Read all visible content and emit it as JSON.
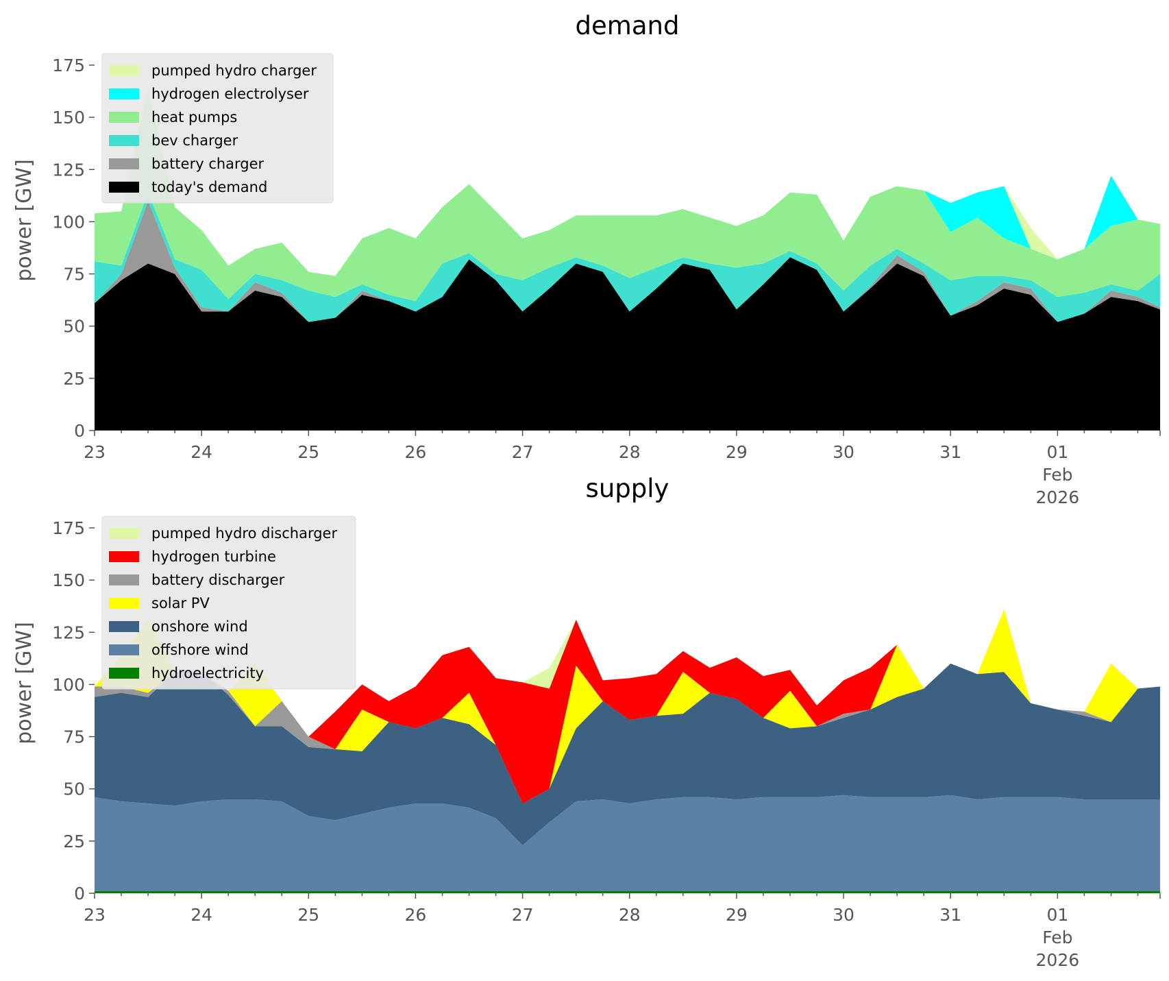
{
  "chart_data": [
    {
      "type": "area",
      "stacked": true,
      "title": "demand",
      "ylabel": "power [GW]",
      "xlabel": "",
      "ylim": [
        0,
        175
      ],
      "yticks": [
        0,
        25,
        50,
        75,
        100,
        125,
        150,
        175
      ],
      "xlim": [
        "2026-01-23",
        "2026-02-01T23:00"
      ],
      "xticks": [
        {
          "x": "2026-01-23",
          "label": "23"
        },
        {
          "x": "2026-01-24",
          "label": "24"
        },
        {
          "x": "2026-01-25",
          "label": "25"
        },
        {
          "x": "2026-01-26",
          "label": "26"
        },
        {
          "x": "2026-01-27",
          "label": "27"
        },
        {
          "x": "2026-01-28",
          "label": "28"
        },
        {
          "x": "2026-01-29",
          "label": "29"
        },
        {
          "x": "2026-01-30",
          "label": "30"
        },
        {
          "x": "2026-01-31",
          "label": "31"
        },
        {
          "x": "2026-02-01",
          "label": "01",
          "sublabel1": "Feb",
          "sublabel2": "2026"
        }
      ],
      "legend_position": "top-left",
      "grid": false,
      "x": [
        "2026-01-23T00:00",
        "2026-01-23T06:00",
        "2026-01-23T12:00",
        "2026-01-23T18:00",
        "2026-01-24T00:00",
        "2026-01-24T06:00",
        "2026-01-24T12:00",
        "2026-01-24T18:00",
        "2026-01-25T00:00",
        "2026-01-25T06:00",
        "2026-01-25T12:00",
        "2026-01-25T18:00",
        "2026-01-26T00:00",
        "2026-01-26T06:00",
        "2026-01-26T12:00",
        "2026-01-26T18:00",
        "2026-01-27T00:00",
        "2026-01-27T06:00",
        "2026-01-27T12:00",
        "2026-01-27T18:00",
        "2026-01-28T00:00",
        "2026-01-28T06:00",
        "2026-01-28T12:00",
        "2026-01-28T18:00",
        "2026-01-29T00:00",
        "2026-01-29T06:00",
        "2026-01-29T12:00",
        "2026-01-29T18:00",
        "2026-01-30T00:00",
        "2026-01-30T06:00",
        "2026-01-30T12:00",
        "2026-01-30T18:00",
        "2026-01-31T00:00",
        "2026-01-31T06:00",
        "2026-01-31T12:00",
        "2026-01-31T18:00",
        "2026-02-01T00:00",
        "2026-02-01T06:00",
        "2026-02-01T12:00",
        "2026-02-01T18:00",
        "2026-02-01T23:00"
      ],
      "series": [
        {
          "name": "today's demand",
          "color": "#000000",
          "values": [
            61,
            72,
            80,
            75,
            57,
            57,
            67,
            64,
            52,
            54,
            65,
            62,
            57,
            64,
            82,
            72,
            57,
            68,
            80,
            76,
            57,
            68,
            80,
            77,
            58,
            70,
            83,
            77,
            57,
            68,
            80,
            74,
            55,
            60,
            68,
            65,
            52,
            56,
            64,
            62,
            58
          ]
        },
        {
          "name": "battery charger",
          "color": "#999999",
          "values": [
            0,
            3,
            30,
            3,
            2,
            0,
            4,
            2,
            0,
            0,
            2,
            0,
            0,
            0,
            0,
            0,
            0,
            0,
            0,
            0,
            0,
            0,
            0,
            0,
            0,
            0,
            0,
            0,
            0,
            1,
            4,
            2,
            0,
            2,
            3,
            3,
            0,
            0,
            3,
            2,
            1
          ]
        },
        {
          "name": "bev charger",
          "color": "#40e0d0",
          "values": [
            20,
            4,
            4,
            4,
            18,
            6,
            4,
            6,
            15,
            10,
            3,
            3,
            5,
            16,
            3,
            3,
            15,
            10,
            3,
            3,
            16,
            10,
            3,
            3,
            20,
            10,
            3,
            3,
            10,
            10,
            3,
            4,
            17,
            12,
            3,
            4,
            12,
            10,
            3,
            3,
            16
          ]
        },
        {
          "name": "heat pumps",
          "color": "#90ee90",
          "values": [
            23,
            26,
            50,
            25,
            19,
            16,
            12,
            18,
            9,
            10,
            22,
            32,
            30,
            27,
            33,
            30,
            20,
            18,
            20,
            24,
            30,
            25,
            23,
            22,
            20,
            23,
            28,
            33,
            24,
            33,
            30,
            35,
            23,
            28,
            18,
            15,
            18,
            21,
            28,
            34,
            24
          ]
        },
        {
          "name": "hydrogen electrolyser",
          "color": "#00ffff",
          "values": [
            0,
            0,
            0,
            0,
            0,
            0,
            0,
            0,
            0,
            0,
            0,
            0,
            0,
            0,
            0,
            0,
            0,
            0,
            0,
            0,
            0,
            0,
            0,
            0,
            0,
            0,
            0,
            0,
            0,
            0,
            0,
            0,
            14,
            12,
            25,
            0,
            0,
            0,
            24,
            0,
            0
          ]
        },
        {
          "name": "pumped hydro charger",
          "color": "#ddf9a5",
          "values": [
            0,
            0,
            0,
            0,
            0,
            0,
            0,
            0,
            0,
            0,
            0,
            0,
            0,
            0,
            0,
            0,
            0,
            0,
            0,
            0,
            0,
            0,
            0,
            0,
            0,
            0,
            0,
            0,
            0,
            0,
            0,
            0,
            0,
            0,
            0,
            10,
            0,
            0,
            0,
            0,
            0
          ]
        }
      ],
      "legend": [
        "pumped hydro charger",
        "hydrogen electrolyser",
        "heat pumps",
        "bev charger",
        "battery charger",
        "today's demand"
      ]
    },
    {
      "type": "area",
      "stacked": true,
      "title": "supply",
      "ylabel": "power [GW]",
      "xlabel": "",
      "ylim": [
        0,
        175
      ],
      "yticks": [
        0,
        25,
        50,
        75,
        100,
        125,
        150,
        175
      ],
      "xlim": [
        "2026-01-23",
        "2026-02-01T23:00"
      ],
      "xticks": [
        {
          "x": "2026-01-23",
          "label": "23"
        },
        {
          "x": "2026-01-24",
          "label": "24"
        },
        {
          "x": "2026-01-25",
          "label": "25"
        },
        {
          "x": "2026-01-26",
          "label": "26"
        },
        {
          "x": "2026-01-27",
          "label": "27"
        },
        {
          "x": "2026-01-28",
          "label": "28"
        },
        {
          "x": "2026-01-29",
          "label": "29"
        },
        {
          "x": "2026-01-30",
          "label": "30"
        },
        {
          "x": "2026-01-31",
          "label": "31"
        },
        {
          "x": "2026-02-01",
          "label": "01",
          "sublabel1": "Feb",
          "sublabel2": "2026"
        }
      ],
      "legend_position": "top-left",
      "grid": false,
      "x": [
        "2026-01-23T00:00",
        "2026-01-23T06:00",
        "2026-01-23T12:00",
        "2026-01-23T18:00",
        "2026-01-24T00:00",
        "2026-01-24T06:00",
        "2026-01-24T12:00",
        "2026-01-24T18:00",
        "2026-01-25T00:00",
        "2026-01-25T06:00",
        "2026-01-25T12:00",
        "2026-01-25T18:00",
        "2026-01-26T00:00",
        "2026-01-26T06:00",
        "2026-01-26T12:00",
        "2026-01-26T18:00",
        "2026-01-27T00:00",
        "2026-01-27T06:00",
        "2026-01-27T12:00",
        "2026-01-27T18:00",
        "2026-01-28T00:00",
        "2026-01-28T06:00",
        "2026-01-28T12:00",
        "2026-01-28T18:00",
        "2026-01-29T00:00",
        "2026-01-29T06:00",
        "2026-01-29T12:00",
        "2026-01-29T18:00",
        "2026-01-30T00:00",
        "2026-01-30T06:00",
        "2026-01-30T12:00",
        "2026-01-30T18:00",
        "2026-01-31T00:00",
        "2026-01-31T06:00",
        "2026-01-31T12:00",
        "2026-01-31T18:00",
        "2026-02-01T00:00",
        "2026-02-01T06:00",
        "2026-02-01T12:00",
        "2026-02-01T18:00",
        "2026-02-01T23:00"
      ],
      "series": [
        {
          "name": "hydroelectricity",
          "color": "#008000",
          "values": [
            1,
            1,
            1,
            1,
            1,
            1,
            1,
            1,
            1,
            1,
            1,
            1,
            1,
            1,
            1,
            1,
            1,
            1,
            1,
            1,
            1,
            1,
            1,
            1,
            1,
            1,
            1,
            1,
            1,
            1,
            1,
            1,
            1,
            1,
            1,
            1,
            1,
            1,
            1,
            1,
            1
          ]
        },
        {
          "name": "offshore wind",
          "color": "#5b82a6",
          "values": [
            45,
            43,
            42,
            41,
            43,
            44,
            44,
            43,
            36,
            34,
            37,
            40,
            42,
            42,
            40,
            35,
            22,
            33,
            43,
            44,
            42,
            44,
            45,
            45,
            44,
            45,
            45,
            45,
            46,
            45,
            45,
            45,
            46,
            44,
            45,
            45,
            45,
            44,
            44,
            44,
            44
          ]
        },
        {
          "name": "onshore wind",
          "color": "#3c6182",
          "values": [
            48,
            52,
            51,
            64,
            62,
            50,
            35,
            36,
            33,
            34,
            30,
            41,
            36,
            41,
            40,
            35,
            20,
            16,
            35,
            47,
            40,
            40,
            40,
            50,
            48,
            38,
            33,
            34,
            37,
            42,
            48,
            52,
            63,
            60,
            60,
            45,
            42,
            40,
            37,
            53,
            54
          ]
        },
        {
          "name": "battery discharger",
          "color": "#999999",
          "values": [
            5,
            3,
            2,
            0,
            0,
            2,
            0,
            12,
            5,
            0,
            0,
            0,
            0,
            0,
            0,
            0,
            0,
            0,
            0,
            0,
            0,
            0,
            0,
            0,
            0,
            0,
            0,
            0,
            2,
            0,
            0,
            0,
            0,
            0,
            0,
            0,
            0,
            2,
            0,
            0,
            0
          ]
        },
        {
          "name": "solar PV",
          "color": "#ffff00",
          "values": [
            0,
            15,
            35,
            0,
            0,
            0,
            30,
            0,
            0,
            0,
            20,
            0,
            0,
            0,
            15,
            0,
            0,
            0,
            30,
            0,
            0,
            0,
            20,
            0,
            0,
            0,
            18,
            0,
            0,
            0,
            25,
            0,
            0,
            0,
            30,
            0,
            0,
            0,
            28,
            0,
            0
          ]
        },
        {
          "name": "hydrogen turbine",
          "color": "#ff0000",
          "values": [
            0,
            0,
            0,
            0,
            0,
            0,
            0,
            0,
            0,
            18,
            12,
            10,
            20,
            30,
            22,
            32,
            58,
            48,
            22,
            10,
            20,
            20,
            10,
            12,
            20,
            20,
            10,
            10,
            16,
            20,
            0,
            0,
            0,
            0,
            0,
            0,
            0,
            0,
            0,
            0,
            0
          ]
        },
        {
          "name": "pumped hydro discharger",
          "color": "#ddf9a5",
          "values": [
            0,
            0,
            0,
            0,
            0,
            0,
            0,
            0,
            0,
            0,
            0,
            0,
            0,
            0,
            0,
            0,
            0,
            10,
            0,
            0,
            0,
            0,
            0,
            0,
            0,
            0,
            0,
            0,
            0,
            0,
            0,
            0,
            0,
            0,
            0,
            0,
            0,
            0,
            0,
            0,
            0
          ]
        }
      ],
      "legend": [
        "pumped hydro discharger",
        "hydrogen turbine",
        "battery discharger",
        "solar PV",
        "onshore wind",
        "offshore wind",
        "hydroelectricity"
      ]
    }
  ]
}
